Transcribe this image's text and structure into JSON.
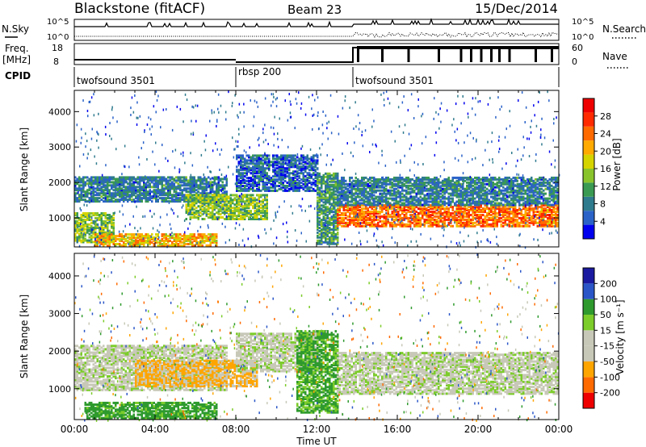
{
  "header": {
    "station": "Blackstone (fitACF)",
    "beam": "Beam 23",
    "date": "15/Dec/2014"
  },
  "top_panels": {
    "noise": {
      "left_label": "N.Sky",
      "right_label": "N.Search",
      "left_ticks": [
        "10^5",
        "10^0"
      ],
      "right_ticks": [
        "10^5",
        "10^0"
      ]
    },
    "freq": {
      "left_label_1": "Freq.",
      "left_label_2": "[MHz]",
      "right_label": "Nave",
      "left_ticks": [
        "18",
        "8"
      ],
      "right_ticks": [
        "60",
        "0"
      ]
    },
    "cpid": {
      "label": "CPID",
      "segments": [
        {
          "name": "twofsound 3501",
          "start": 0.0,
          "end": 8.0
        },
        {
          "name": "rbsp 200",
          "start": 8.0,
          "end": 13.8
        },
        {
          "name": "twofsound 3501",
          "start": 13.8,
          "end": 24.0
        }
      ]
    }
  },
  "time_axis": {
    "label": "Time UT",
    "ticks": [
      "00:00",
      "04:00",
      "08:00",
      "12:00",
      "16:00",
      "20:00",
      "00:00"
    ]
  },
  "colors": {
    "power_scale": [
      "#0000ee",
      "#2a62c8",
      "#2f7b8e",
      "#3a9a52",
      "#8ac42c",
      "#d6d400",
      "#ffaa00",
      "#ff6a00",
      "#ff2a00",
      "#ee0000"
    ],
    "velocity_scale": [
      "#ee0000",
      "#ff6a00",
      "#ffa500",
      "#c8c8b8",
      "#c8c8b8",
      "#7ccc2a",
      "#2e9a2e",
      "#2a56c8",
      "#1a1aa0"
    ]
  },
  "chart_data": [
    {
      "type": "heatmap",
      "name": "power",
      "ylabel": "Slant Range [km]",
      "xlabel": "Time UT",
      "xlim": [
        0,
        24
      ],
      "ylim": [
        180,
        4600
      ],
      "yticks": [
        "1000",
        "2000",
        "3000",
        "4000"
      ],
      "colorbar": {
        "title": "Power [dB]",
        "range": [
          0,
          32
        ],
        "ticks": [
          "4",
          "8",
          "12",
          "16",
          "20",
          "24",
          "28"
        ]
      },
      "echo_bands": [
        {
          "t_start": 0.0,
          "t_end": 2.0,
          "r_start": 350,
          "r_end": 1200,
          "value": 14
        },
        {
          "t_start": 1.0,
          "t_end": 7.0,
          "r_start": 250,
          "r_end": 600,
          "value": 20
        },
        {
          "t_start": 0.0,
          "t_end": 7.5,
          "r_start": 1500,
          "r_end": 2200,
          "value": 8
        },
        {
          "t_start": 5.5,
          "t_end": 9.5,
          "r_start": 1000,
          "r_end": 1700,
          "value": 14
        },
        {
          "t_start": 8.0,
          "t_end": 12.0,
          "r_start": 1800,
          "r_end": 2800,
          "value": 6
        },
        {
          "t_start": 12.0,
          "t_end": 13.0,
          "r_start": 300,
          "r_end": 2300,
          "value": 10
        },
        {
          "t_start": 13.0,
          "t_end": 24.0,
          "r_start": 800,
          "r_end": 1400,
          "value": 24
        },
        {
          "t_start": 13.0,
          "t_end": 24.0,
          "r_start": 1400,
          "r_end": 2200,
          "value": 8
        }
      ]
    },
    {
      "type": "heatmap",
      "name": "velocity",
      "ylabel": "Slant Range [km]",
      "xlabel": "Time UT",
      "xlim": [
        0,
        24
      ],
      "ylim": [
        180,
        4600
      ],
      "yticks": [
        "1000",
        "2000",
        "3000",
        "4000"
      ],
      "colorbar": {
        "title": "Velocity [m s⁻¹]",
        "range": [
          -250,
          250
        ],
        "ticks": [
          "200",
          "100",
          "50",
          "15",
          "-15",
          "-50",
          "-100",
          "-200"
        ]
      },
      "echo_bands": [
        {
          "t_start": 0.0,
          "t_end": 7.5,
          "r_start": 1000,
          "r_end": 2200,
          "value": 0
        },
        {
          "t_start": 0.5,
          "t_end": 7.0,
          "r_start": 250,
          "r_end": 700,
          "value": 70
        },
        {
          "t_start": 3.0,
          "t_end": 9.0,
          "r_start": 1100,
          "r_end": 1800,
          "value": -60
        },
        {
          "t_start": 8.0,
          "t_end": 12.0,
          "r_start": 1500,
          "r_end": 2500,
          "value": 0
        },
        {
          "t_start": 11.0,
          "t_end": 13.0,
          "r_start": 400,
          "r_end": 2600,
          "value": 60
        },
        {
          "t_start": 13.0,
          "t_end": 24.0,
          "r_start": 900,
          "r_end": 2000,
          "value": 0
        }
      ]
    }
  ]
}
